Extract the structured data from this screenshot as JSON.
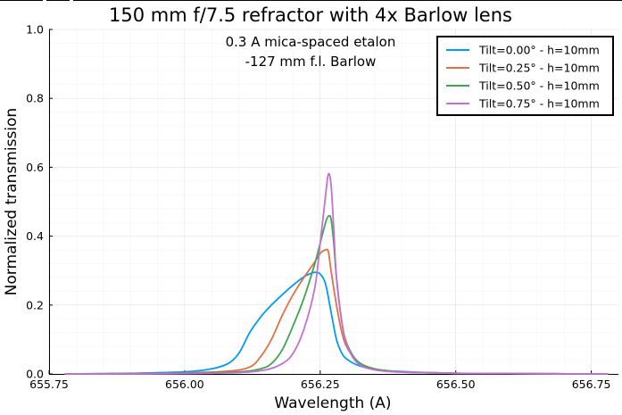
{
  "chart_data": {
    "type": "line",
    "title": "150 mm f/7.5 refractor with 4x Barlow lens",
    "annotation_lines": [
      "0.3 A mica-spaced etalon",
      "-127 mm f.l. Barlow"
    ],
    "xlabel": "Wavelength (A)",
    "ylabel": "Normalized transmission",
    "xlim": [
      655.75,
      656.8
    ],
    "ylim": [
      0,
      1.0
    ],
    "x_ticks": [
      655.75,
      656.0,
      656.25,
      656.5,
      656.75
    ],
    "x_tick_labels": [
      "655.75",
      "656.00",
      "656.25",
      "656.50",
      "656.75"
    ],
    "y_ticks": [
      0,
      0.2,
      0.4,
      0.6,
      0.8,
      1.0
    ],
    "y_tick_labels": [
      "0.0",
      "0.2",
      "0.4",
      "0.6",
      "0.8",
      "1.0"
    ],
    "grid": true,
    "legend_position": "top-right",
    "series": [
      {
        "name": "Tilt=0.00° - h=10mm",
        "color": "#009AFA",
        "x": [
          655.78,
          655.9,
          656.0,
          656.05,
          656.08,
          656.1,
          656.12,
          656.14,
          656.16,
          656.18,
          656.2,
          656.22,
          656.23,
          656.24,
          656.25,
          656.26,
          656.27,
          656.28,
          656.29,
          656.3,
          656.32,
          656.35,
          656.4,
          656.5,
          656.6,
          656.78
        ],
        "y": [
          0.0,
          0.002,
          0.006,
          0.015,
          0.03,
          0.06,
          0.12,
          0.165,
          0.2,
          0.23,
          0.258,
          0.282,
          0.29,
          0.295,
          0.29,
          0.26,
          0.18,
          0.1,
          0.06,
          0.042,
          0.025,
          0.014,
          0.007,
          0.002,
          0.001,
          0.0
        ]
      },
      {
        "name": "Tilt=0.25° - h=10mm",
        "color": "#E36F47",
        "x": [
          655.78,
          655.9,
          656.0,
          656.08,
          656.12,
          656.14,
          656.16,
          656.18,
          656.2,
          656.22,
          656.24,
          656.25,
          656.26,
          656.265,
          656.27,
          656.28,
          656.29,
          656.3,
          656.32,
          656.35,
          656.4,
          656.5,
          656.6,
          656.78
        ],
        "y": [
          0.0,
          0.001,
          0.003,
          0.008,
          0.02,
          0.05,
          0.1,
          0.17,
          0.23,
          0.28,
          0.325,
          0.35,
          0.36,
          0.355,
          0.3,
          0.2,
          0.12,
          0.075,
          0.035,
          0.015,
          0.006,
          0.002,
          0.001,
          0.0
        ]
      },
      {
        "name": "Tilt=0.50° - h=10mm",
        "color": "#3EA44E",
        "x": [
          655.78,
          655.9,
          656.0,
          656.1,
          656.14,
          656.16,
          656.18,
          656.2,
          656.22,
          656.24,
          656.25,
          656.26,
          656.265,
          656.27,
          656.275,
          656.28,
          656.29,
          656.3,
          656.32,
          656.35,
          656.4,
          656.5,
          656.6,
          656.78
        ],
        "y": [
          0.0,
          0.0,
          0.002,
          0.006,
          0.015,
          0.03,
          0.07,
          0.14,
          0.22,
          0.32,
          0.38,
          0.44,
          0.458,
          0.45,
          0.38,
          0.28,
          0.15,
          0.085,
          0.035,
          0.015,
          0.006,
          0.002,
          0.001,
          0.0
        ]
      },
      {
        "name": "Tilt=0.75° - h=10mm",
        "color": "#C271D2",
        "x": [
          655.78,
          655.9,
          656.0,
          656.1,
          656.15,
          656.18,
          656.2,
          656.22,
          656.24,
          656.25,
          656.26,
          656.265,
          656.27,
          656.275,
          656.28,
          656.29,
          656.3,
          656.32,
          656.35,
          656.4,
          656.5,
          656.6,
          656.78
        ],
        "y": [
          0.0,
          0.0,
          0.001,
          0.004,
          0.012,
          0.03,
          0.06,
          0.13,
          0.25,
          0.38,
          0.52,
          0.58,
          0.55,
          0.42,
          0.28,
          0.15,
          0.08,
          0.03,
          0.012,
          0.005,
          0.002,
          0.001,
          0.0
        ]
      }
    ]
  }
}
